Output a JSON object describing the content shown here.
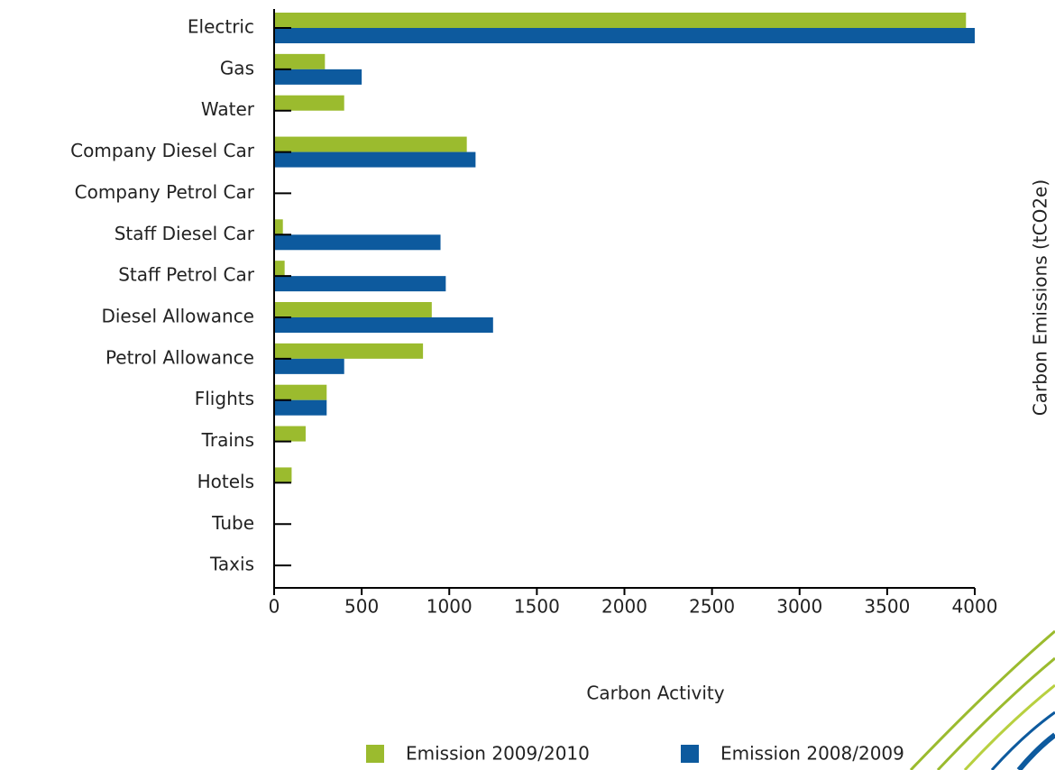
{
  "chart_data": {
    "type": "hbar",
    "categories": [
      "Electric",
      "Gas",
      "Water",
      "Company Diesel Car",
      "Company Petrol Car",
      "Staff Diesel Car",
      "Staff Petrol Car",
      "Diesel Allowance",
      "Petrol Allowance",
      "Flights",
      "Trains",
      "Hotels",
      "Tube",
      "Taxis"
    ],
    "series": [
      {
        "name": "Emission 2009/2010",
        "color": "#9bbb2e",
        "values": [
          3950,
          290,
          400,
          1100,
          5,
          50,
          60,
          900,
          850,
          300,
          180,
          100,
          5,
          5
        ]
      },
      {
        "name": "Emission 2008/2009",
        "color": "#0d5a9e",
        "values": [
          4000,
          500,
          5,
          1150,
          5,
          950,
          980,
          1250,
          400,
          300,
          5,
          5,
          5,
          5
        ]
      }
    ],
    "xlim": [
      0,
      4000
    ],
    "xticks": [
      0,
      500,
      1000,
      1500,
      2000,
      2500,
      3000,
      3500,
      4000
    ],
    "x_label": "Carbon Activity",
    "side_label": "Carbon Emissions (tCO2e)",
    "legend": "bottom"
  }
}
